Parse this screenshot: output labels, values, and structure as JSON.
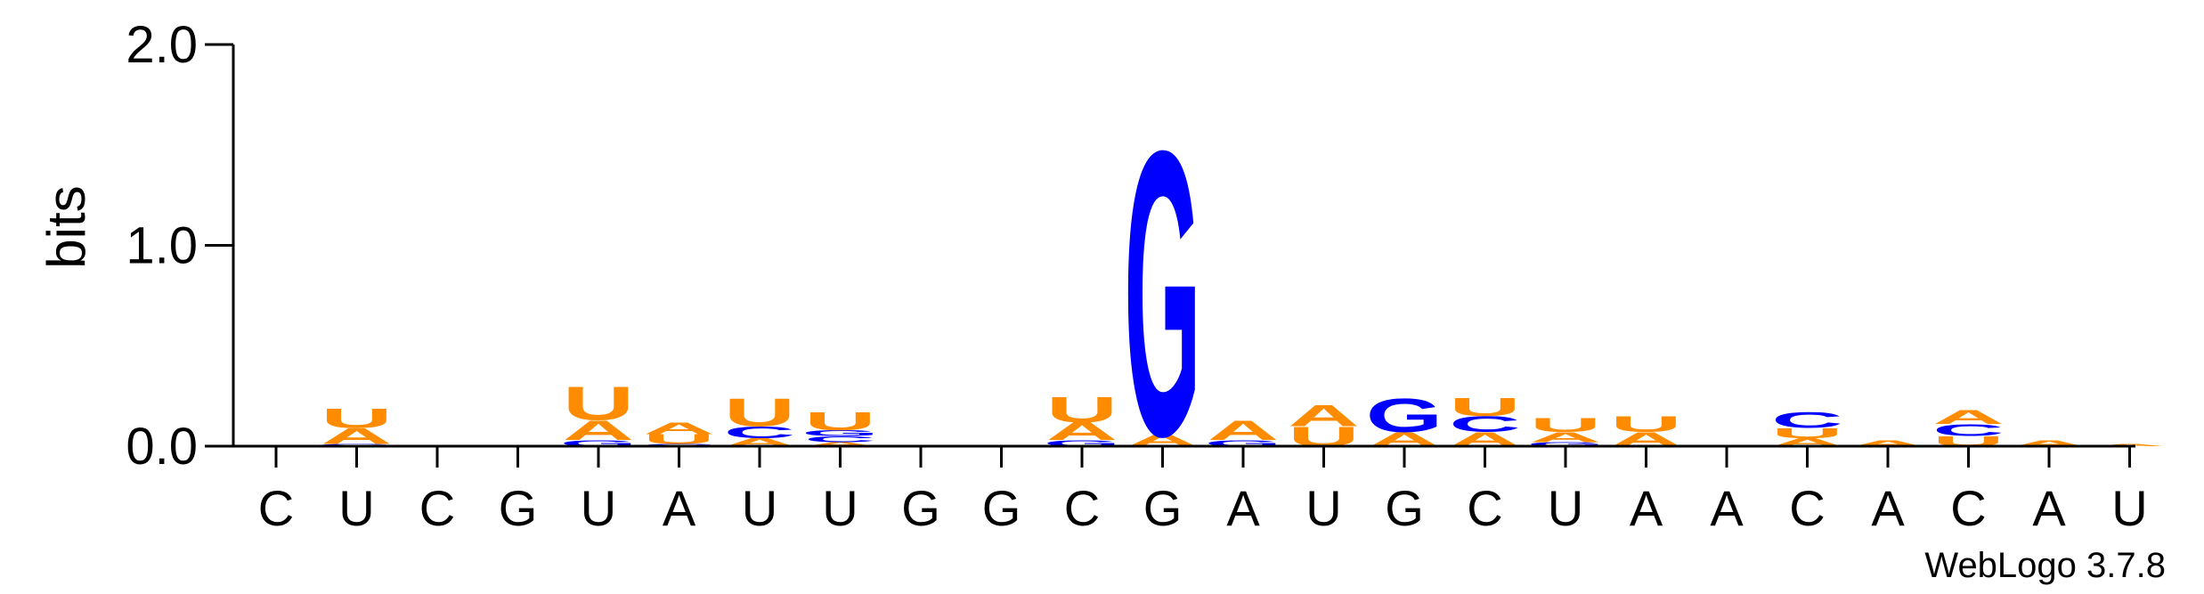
{
  "chart_data": {
    "type": "sequence-logo",
    "ylabel": "bits",
    "ylim": [
      0,
      2.0
    ],
    "yticks": [
      {
        "value": 0.0,
        "label": "0.0"
      },
      {
        "value": 1.0,
        "label": "1.0"
      },
      {
        "value": 2.0,
        "label": "2.0"
      }
    ],
    "x_labels": [
      "C",
      "U",
      "C",
      "G",
      "U",
      "A",
      "U",
      "U",
      "G",
      "G",
      "C",
      "G",
      "A",
      "U",
      "G",
      "C",
      "U",
      "A",
      "A",
      "C",
      "A",
      "C",
      "A",
      "U"
    ],
    "colors": {
      "A": "#ff8c00",
      "U": "#ff8c00",
      "C": "#0000ff",
      "G": "#0000ff"
    },
    "positions": [
      [],
      [
        {
          "letter": "G",
          "bits": 0.01
        },
        {
          "letter": "A",
          "bits": 0.08
        },
        {
          "letter": "U",
          "bits": 0.1
        }
      ],
      [],
      [],
      [
        {
          "letter": "G",
          "bits": 0.03
        },
        {
          "letter": "A",
          "bits": 0.1
        },
        {
          "letter": "U",
          "bits": 0.17
        }
      ],
      [
        {
          "letter": "C",
          "bits": 0.01
        },
        {
          "letter": "U",
          "bits": 0.05
        },
        {
          "letter": "A",
          "bits": 0.06
        }
      ],
      [
        {
          "letter": "A",
          "bits": 0.04
        },
        {
          "letter": "C",
          "bits": 0.06
        },
        {
          "letter": "U",
          "bits": 0.14
        }
      ],
      [
        {
          "letter": "A",
          "bits": 0.02
        },
        {
          "letter": "C",
          "bits": 0.03
        },
        {
          "letter": "G",
          "bits": 0.03
        },
        {
          "letter": "U",
          "bits": 0.09
        }
      ],
      [],
      [],
      [
        {
          "letter": "G",
          "bits": 0.03
        },
        {
          "letter": "A",
          "bits": 0.09
        },
        {
          "letter": "U",
          "bits": 0.13
        }
      ],
      [
        {
          "letter": "A",
          "bits": 0.06
        },
        {
          "letter": "G",
          "bits": 1.45
        }
      ],
      [
        {
          "letter": "G",
          "bits": 0.03
        },
        {
          "letter": "A",
          "bits": 0.1
        }
      ],
      [
        {
          "letter": "U",
          "bits": 0.1
        },
        {
          "letter": "A",
          "bits": 0.11
        }
      ],
      [
        {
          "letter": "A",
          "bits": 0.07
        },
        {
          "letter": "G",
          "bits": 0.17
        }
      ],
      [
        {
          "letter": "A",
          "bits": 0.07
        },
        {
          "letter": "C",
          "bits": 0.08
        },
        {
          "letter": "U",
          "bits": 0.09
        }
      ],
      [
        {
          "letter": "G",
          "bits": 0.02
        },
        {
          "letter": "A",
          "bits": 0.05
        },
        {
          "letter": "U",
          "bits": 0.07
        }
      ],
      [
        {
          "letter": "A",
          "bits": 0.07
        },
        {
          "letter": "U",
          "bits": 0.08
        }
      ],
      [],
      [
        {
          "letter": "A",
          "bits": 0.04
        },
        {
          "letter": "U",
          "bits": 0.05
        },
        {
          "letter": "C",
          "bits": 0.08
        }
      ],
      [
        {
          "letter": "A",
          "bits": 0.03
        }
      ],
      [
        {
          "letter": "U",
          "bits": 0.05
        },
        {
          "letter": "C",
          "bits": 0.06
        },
        {
          "letter": "A",
          "bits": 0.07
        }
      ],
      [
        {
          "letter": "A",
          "bits": 0.03
        }
      ],
      [
        {
          "letter": "A",
          "bits": 0.01
        }
      ]
    ]
  },
  "watermark": "WebLogo 3.7.8"
}
